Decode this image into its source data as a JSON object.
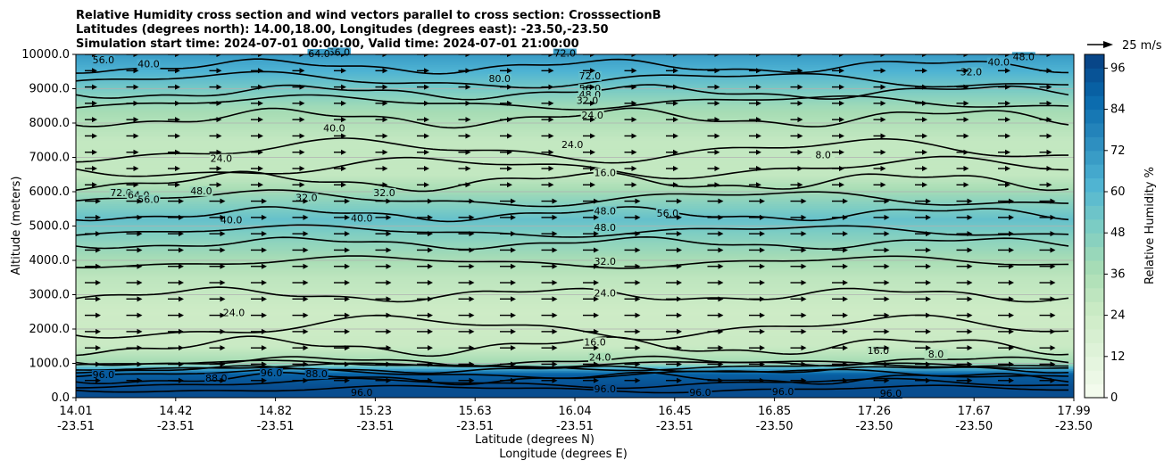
{
  "chart_data": {
    "type": "contour",
    "title_lines": [
      "Relative Humidity cross section and wind vectors parallel to cross section: CrosssectionB",
      "Latitudes (degrees north): 14.00,18.00, Longitudes (degrees east): -23.50,-23.50",
      "Simulation start time: 2024-07-01 00:00:00, Valid time: 2024-07-01 21:00:00"
    ],
    "ylabel": "Altitude (meters)",
    "xlabel": "Latitude (degrees N)",
    "xlabel2": "Longitude (degrees E)",
    "colorbar_label": "Relative Humidity %",
    "quiver_key_label": "25 m/s",
    "ylim": [
      0,
      10000
    ],
    "y_ticks": [
      "0.0",
      "1000.0",
      "2000.0",
      "3000.0",
      "4000.0",
      "5000.0",
      "6000.0",
      "7000.0",
      "8000.0",
      "9000.0",
      "10000.0"
    ],
    "y_tick_values": [
      0,
      1000,
      2000,
      3000,
      4000,
      5000,
      6000,
      7000,
      8000,
      9000,
      10000
    ],
    "x_ticks_lat": [
      "14.01",
      "14.42",
      "14.82",
      "15.23",
      "15.63",
      "16.04",
      "16.45",
      "16.85",
      "17.26",
      "17.67",
      "17.99"
    ],
    "x_ticks_lon": [
      "-23.51",
      "-23.51",
      "-23.51",
      "-23.51",
      "-23.51",
      "-23.51",
      "-23.51",
      "-23.50",
      "-23.50",
      "-23.50",
      "-23.50"
    ],
    "colorbar_ticks": [
      "0",
      "12",
      "24",
      "36",
      "48",
      "60",
      "72",
      "84",
      "96"
    ],
    "colorbar_range": [
      0,
      100
    ],
    "colorbar_levels": [
      0,
      4,
      8,
      12,
      16,
      20,
      24,
      28,
      32,
      36,
      40,
      44,
      48,
      52,
      56,
      60,
      64,
      68,
      72,
      76,
      80,
      84,
      88,
      92,
      96,
      100
    ],
    "grid": "horizontal",
    "rh_layers": [
      {
        "z": 0,
        "rh": 96
      },
      {
        "z": 300,
        "rh": 96
      },
      {
        "z": 700,
        "rh": 90
      },
      {
        "z": 1000,
        "rh": 40
      },
      {
        "z": 1500,
        "rh": 26
      },
      {
        "z": 2500,
        "rh": 24
      },
      {
        "z": 3500,
        "rh": 30
      },
      {
        "z": 4500,
        "rh": 44
      },
      {
        "z": 5200,
        "rh": 56
      },
      {
        "z": 5800,
        "rh": 44
      },
      {
        "z": 6500,
        "rh": 28
      },
      {
        "z": 7500,
        "rh": 28
      },
      {
        "z": 8500,
        "rh": 40
      },
      {
        "z": 9500,
        "rh": 62
      },
      {
        "z": 10000,
        "rh": 70
      }
    ],
    "contour_labels": [
      {
        "text": "56.0",
        "lat": 14.12,
        "alt": 9760
      },
      {
        "text": "40.0",
        "lat": 14.3,
        "alt": 9650
      },
      {
        "text": "56.0",
        "lat": 15.06,
        "alt": 9990
      },
      {
        "text": "64.0",
        "lat": 14.98,
        "alt": 9950
      },
      {
        "text": "80.0",
        "lat": 15.7,
        "alt": 9220
      },
      {
        "text": "72.0",
        "lat": 15.96,
        "alt": 9960
      },
      {
        "text": "72.0",
        "lat": 16.06,
        "alt": 9300
      },
      {
        "text": "56.0",
        "lat": 16.06,
        "alt": 8930
      },
      {
        "text": "48.0",
        "lat": 16.06,
        "alt": 8750
      },
      {
        "text": "32.0",
        "lat": 16.05,
        "alt": 8580
      },
      {
        "text": "24.0",
        "lat": 16.07,
        "alt": 8150
      },
      {
        "text": "40.0",
        "lat": 15.04,
        "alt": 7780
      },
      {
        "text": "24.0",
        "lat": 15.99,
        "alt": 7300
      },
      {
        "text": "16.0",
        "lat": 16.12,
        "alt": 6480
      },
      {
        "text": "8.0",
        "lat": 16.99,
        "alt": 7000
      },
      {
        "text": "32.0",
        "lat": 17.58,
        "alt": 9420
      },
      {
        "text": "40.0",
        "lat": 17.69,
        "alt": 9700
      },
      {
        "text": "48.0",
        "lat": 17.79,
        "alt": 9860
      },
      {
        "text": "24.0",
        "lat": 14.59,
        "alt": 6890
      },
      {
        "text": "72.0",
        "lat": 14.19,
        "alt": 5900
      },
      {
        "text": "64.0",
        "lat": 14.26,
        "alt": 5830
      },
      {
        "text": "56.0",
        "lat": 14.3,
        "alt": 5700
      },
      {
        "text": "48.0",
        "lat": 14.51,
        "alt": 5950
      },
      {
        "text": "32.0",
        "lat": 14.93,
        "alt": 5750
      },
      {
        "text": "32.0",
        "lat": 15.24,
        "alt": 5900
      },
      {
        "text": "40.0",
        "lat": 14.63,
        "alt": 5100
      },
      {
        "text": "40.0",
        "lat": 15.15,
        "alt": 5150
      },
      {
        "text": "48.0",
        "lat": 16.12,
        "alt": 5370
      },
      {
        "text": "48.0",
        "lat": 16.12,
        "alt": 4880
      },
      {
        "text": "56.0",
        "lat": 16.37,
        "alt": 5300
      },
      {
        "text": "32.0",
        "lat": 16.12,
        "alt": 3900
      },
      {
        "text": "24.0",
        "lat": 16.12,
        "alt": 2980
      },
      {
        "text": "24.0",
        "lat": 14.64,
        "alt": 2400
      },
      {
        "text": "16.0",
        "lat": 16.08,
        "alt": 1550
      },
      {
        "text": "16.0",
        "lat": 17.21,
        "alt": 1300
      },
      {
        "text": "8.0",
        "lat": 17.44,
        "alt": 1200
      },
      {
        "text": "24.0",
        "lat": 16.1,
        "alt": 1100
      },
      {
        "text": "96.0",
        "lat": 14.12,
        "alt": 600
      },
      {
        "text": "88.0",
        "lat": 14.57,
        "alt": 500
      },
      {
        "text": "96.0",
        "lat": 14.79,
        "alt": 650
      },
      {
        "text": "88.0",
        "lat": 14.97,
        "alt": 620
      },
      {
        "text": "96.0",
        "lat": 15.15,
        "alt": 80
      },
      {
        "text": "96.0",
        "lat": 16.12,
        "alt": 180
      },
      {
        "text": "96.0",
        "lat": 16.5,
        "alt": 80
      },
      {
        "text": "96.0",
        "lat": 16.83,
        "alt": 100
      },
      {
        "text": "96.0",
        "lat": 17.26,
        "alt": 50
      }
    ],
    "wind": {
      "direction": "parallel-right",
      "key_speed_ms": 25
    }
  }
}
